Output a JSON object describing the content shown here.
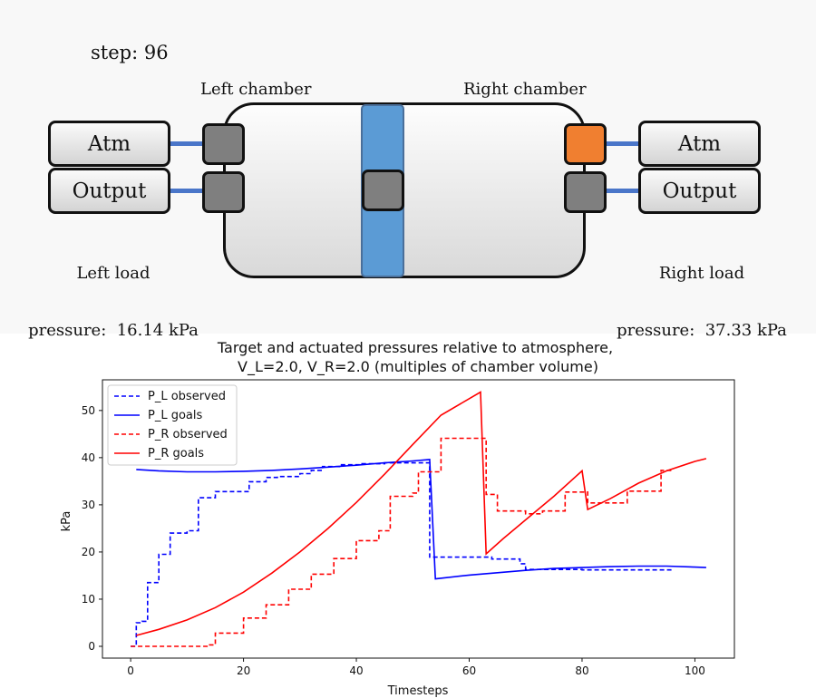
{
  "sim": {
    "step_text": "step: 96",
    "left_chamber_title": "Left chamber",
    "right_chamber_title": "Right chamber",
    "left_ports": {
      "atm": "Atm",
      "output": "Output"
    },
    "right_ports": {
      "atm": "Atm",
      "output": "Output"
    },
    "left_load_label": "Left load",
    "left_load_value": "pressure:  16.14 kPa",
    "right_load_label": "Right load",
    "right_load_value": "pressure:  37.33 kPa",
    "colors": {
      "piston": "#5b9bd5",
      "valve_closed": "#7f7f7f",
      "valve_open": "#f07f30",
      "pipe": "#4a76c9"
    },
    "valve_states": {
      "left_atm": "closed",
      "left_output": "closed",
      "piston": "closed",
      "right_atm": "open",
      "right_output": "closed"
    }
  },
  "chart_data": {
    "type": "line",
    "title": "Target and actuated pressures relative to atmosphere,",
    "subtitle": "V_L=2.0,     V_R=2.0 (multiples of chamber volume)",
    "xlabel": "Timesteps",
    "ylabel": "kPa",
    "xlim": [
      -5,
      107
    ],
    "ylim": [
      -2.5,
      56.5
    ],
    "xticks": [
      0,
      20,
      40,
      60,
      80,
      100
    ],
    "yticks": [
      0,
      10,
      20,
      30,
      40,
      50
    ],
    "legend_position": "top-left",
    "series": [
      {
        "name": "P_L observed",
        "color": "#0000ff",
        "dash": true,
        "points": [
          [
            0,
            0
          ],
          [
            1,
            0
          ],
          [
            1,
            5
          ],
          [
            2,
            5
          ],
          [
            2,
            5.3
          ],
          [
            3,
            5.3
          ],
          [
            3,
            13.5
          ],
          [
            5,
            13.5
          ],
          [
            5,
            19.5
          ],
          [
            7,
            19.5
          ],
          [
            7,
            24
          ],
          [
            10,
            24
          ],
          [
            10,
            24.5
          ],
          [
            12,
            24.5
          ],
          [
            12,
            31.5
          ],
          [
            15,
            31.5
          ],
          [
            15,
            32.8
          ],
          [
            21,
            32.8
          ],
          [
            21,
            34.9
          ],
          [
            24,
            34.9
          ],
          [
            24,
            35.8
          ],
          [
            26,
            35.8
          ],
          [
            26,
            36
          ],
          [
            30,
            36
          ],
          [
            30,
            36.6
          ],
          [
            32,
            36.6
          ],
          [
            32,
            37.3
          ],
          [
            34,
            37.3
          ],
          [
            34,
            38.1
          ],
          [
            37,
            38.1
          ],
          [
            37,
            38.5
          ],
          [
            41,
            38.5
          ],
          [
            41,
            38.7
          ],
          [
            45,
            38.7
          ],
          [
            45,
            38.9
          ],
          [
            53,
            38.9
          ],
          [
            53,
            18.9
          ],
          [
            64,
            18.9
          ],
          [
            64,
            18.5
          ],
          [
            69,
            18.5
          ],
          [
            69,
            17.5
          ],
          [
            70,
            17.5
          ],
          [
            70,
            16.3
          ],
          [
            80,
            16.3
          ],
          [
            80,
            16.2
          ],
          [
            96,
            16.2
          ]
        ]
      },
      {
        "name": "P_L goals",
        "color": "#0000ff",
        "dash": false,
        "points": [
          [
            1,
            37.5
          ],
          [
            5,
            37.2
          ],
          [
            10,
            37.0
          ],
          [
            15,
            37.0
          ],
          [
            20,
            37.1
          ],
          [
            25,
            37.3
          ],
          [
            30,
            37.6
          ],
          [
            35,
            38.0
          ],
          [
            40,
            38.4
          ],
          [
            45,
            38.9
          ],
          [
            50,
            39.3
          ],
          [
            53,
            39.6
          ],
          [
            54,
            14.3
          ],
          [
            60,
            15.1
          ],
          [
            65,
            15.6
          ],
          [
            70,
            16.1
          ],
          [
            75,
            16.5
          ],
          [
            80,
            16.7
          ],
          [
            85,
            16.9
          ],
          [
            90,
            17.0
          ],
          [
            95,
            17.0
          ],
          [
            100,
            16.8
          ],
          [
            102,
            16.7
          ]
        ]
      },
      {
        "name": "P_R observed",
        "color": "#ff0000",
        "dash": true,
        "points": [
          [
            0,
            0
          ],
          [
            14,
            0
          ],
          [
            14,
            0.3
          ],
          [
            15,
            0.3
          ],
          [
            15,
            2.8
          ],
          [
            20,
            2.8
          ],
          [
            20,
            6
          ],
          [
            24,
            6
          ],
          [
            24,
            8.8
          ],
          [
            28,
            8.8
          ],
          [
            28,
            12.1
          ],
          [
            32,
            12.1
          ],
          [
            32,
            15.3
          ],
          [
            36,
            15.3
          ],
          [
            36,
            18.6
          ],
          [
            40,
            18.6
          ],
          [
            40,
            22.4
          ],
          [
            44,
            22.4
          ],
          [
            44,
            24.5
          ],
          [
            46,
            24.5
          ],
          [
            46,
            31.8
          ],
          [
            50,
            31.8
          ],
          [
            50,
            32.5
          ],
          [
            51,
            32.5
          ],
          [
            51,
            37
          ],
          [
            55,
            37
          ],
          [
            55,
            44.1
          ],
          [
            63,
            44.1
          ],
          [
            63,
            32.2
          ],
          [
            65,
            32.2
          ],
          [
            65,
            28.7
          ],
          [
            70,
            28.7
          ],
          [
            70,
            28.1
          ],
          [
            73,
            28.1
          ],
          [
            73,
            28.7
          ],
          [
            77,
            28.7
          ],
          [
            77,
            32.7
          ],
          [
            81,
            32.7
          ],
          [
            81,
            30.4
          ],
          [
            88,
            30.4
          ],
          [
            88,
            32.9
          ],
          [
            94,
            32.9
          ],
          [
            94,
            37.3
          ],
          [
            96,
            37.3
          ]
        ]
      },
      {
        "name": "P_R goals",
        "color": "#ff0000",
        "dash": false,
        "points": [
          [
            1,
            2.3
          ],
          [
            5,
            3.6
          ],
          [
            10,
            5.6
          ],
          [
            15,
            8.2
          ],
          [
            20,
            11.5
          ],
          [
            25,
            15.5
          ],
          [
            30,
            20.0
          ],
          [
            35,
            25.0
          ],
          [
            40,
            30.5
          ],
          [
            45,
            36.5
          ],
          [
            50,
            42.8
          ],
          [
            55,
            49.0
          ],
          [
            62,
            53.9
          ],
          [
            63,
            19.6
          ],
          [
            66,
            22.8
          ],
          [
            70,
            26.8
          ],
          [
            75,
            31.8
          ],
          [
            80,
            37.2
          ],
          [
            81,
            29.0
          ],
          [
            85,
            31.3
          ],
          [
            90,
            34.6
          ],
          [
            95,
            37.2
          ],
          [
            100,
            39.2
          ],
          [
            102,
            39.8
          ]
        ]
      }
    ]
  }
}
